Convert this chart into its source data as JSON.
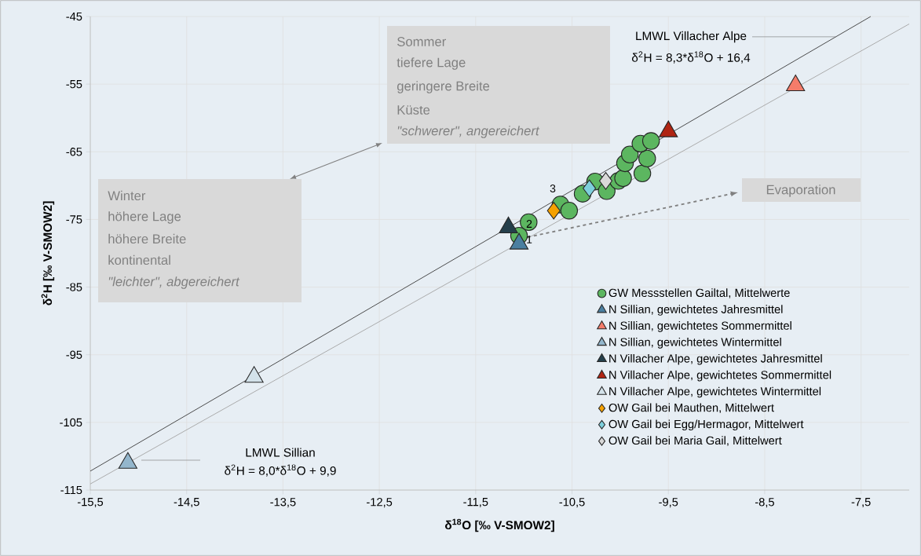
{
  "chart_data": {
    "type": "scatter",
    "xlabel": "δ$^{18}$O [‰ V-SMOW2]",
    "ylabel": "δ$^{2}$H [‰ V-SMOW2]",
    "xlim": [
      -15.5,
      -7.0
    ],
    "ylim": [
      -115,
      -45
    ],
    "xticks": [
      {
        "value": -15.5,
        "label": "-15,5"
      },
      {
        "value": -14.5,
        "label": "-14,5"
      },
      {
        "value": -13.5,
        "label": "-13,5"
      },
      {
        "value": -12.5,
        "label": "-12,5"
      },
      {
        "value": -11.5,
        "label": "-11,5"
      },
      {
        "value": -10.5,
        "label": "-10,5"
      },
      {
        "value": -9.5,
        "label": "-9,5"
      },
      {
        "value": -8.5,
        "label": "-8,5"
      },
      {
        "value": -7.5,
        "label": "-7,5"
      }
    ],
    "yticks": [
      -115,
      -105,
      -95,
      -85,
      -75,
      -65,
      -55,
      -45
    ],
    "grid": true,
    "legend": "bottom right",
    "series": [
      {
        "type": "line",
        "color": "#404040",
        "x": [
          -15.5,
          -7.4
        ],
        "values": [
          -112.2,
          -45.0
        ]
      },
      {
        "type": "line",
        "color": "#a6a6a6",
        "x": [
          -15.5,
          -7.0
        ],
        "values": [
          -114.1,
          -46.1
        ]
      },
      {
        "name": "GW Messstellen Gailtal, Mittelwerte",
        "color": "#5cb660",
        "marker": "circle",
        "x": [
          -10.95,
          -11.05,
          -10.62,
          -10.53,
          -10.39,
          -10.26,
          -10.14,
          -10.02,
          -9.97,
          -9.95,
          -9.9,
          -9.77,
          -9.72,
          -9.79,
          -9.68
        ],
        "values": [
          -75.4,
          -77.4,
          -72.8,
          -73.7,
          -71.2,
          -69.4,
          -70.8,
          -69.3,
          -68.9,
          -66.7,
          -65.4,
          -68.2,
          -66.0,
          -63.8,
          -63.4
        ]
      },
      {
        "name": "N Sillian, gewichtetes Jahresmittel",
        "color": "#4a7fa0",
        "marker": "triangle",
        "x": [
          -11.05
        ],
        "values": [
          -78.6
        ]
      },
      {
        "name": "N Sillian, gewichtetes Sommermittel",
        "color": "#f47c6a",
        "marker": "triangle",
        "x": [
          -8.18
        ],
        "values": [
          -55.2
        ]
      },
      {
        "name": "N Sillian, gewichtetes Wintermittel",
        "color": "#93b6cc",
        "marker": "triangle",
        "x": [
          -15.11
        ],
        "values": [
          -111.0
        ]
      },
      {
        "name": "N Villacher Alpe, gewichtetes Jahresmittel",
        "color": "#243f4b",
        "marker": "triangle",
        "x": [
          -11.16
        ],
        "values": [
          -76.2
        ]
      },
      {
        "name": "N Villacher Alpe, gewichtetes Sommermittel",
        "color": "#b02412",
        "marker": "triangle",
        "x": [
          -9.5
        ],
        "values": [
          -62.0
        ]
      },
      {
        "name": "N Villacher Alpe, gewichtetes Wintermittel",
        "color": "#d3e2ea",
        "marker": "triangle",
        "x": [
          -13.8
        ],
        "values": [
          -98.3
        ]
      },
      {
        "name": "OW Gail bei Mauthen, Mittelwert",
        "color": "#f5a100",
        "marker": "diamond",
        "x": [
          -10.69
        ],
        "values": [
          -73.7
        ]
      },
      {
        "name": "OW Gail bei Egg/Hermagor, Mittelwert",
        "color": "#7ecfdc",
        "marker": "diamond",
        "x": [
          -10.32
        ],
        "values": [
          -70.4
        ]
      },
      {
        "name": "OW Gail bei Maria Gail, Mittelwert",
        "color": "#d9d9d9",
        "marker": "diamond",
        "x": [
          -10.15
        ],
        "values": [
          -69.3
        ]
      }
    ],
    "annotations": [
      {
        "text": "LMWL Villacher Alpe",
        "x": -7.76,
        "y": -48.0
      },
      "δ$^{2}$H = 8,3*δ$^{18}$O  + 16,4",
      "LMWL Sillian",
      "δ$^{2}$H = 8,0*δ$^{18}$O + 9,9",
      "Sommer",
      "tiefere Lage",
      "geringere Breite",
      "Küste",
      "\"schwerer\", angereichert",
      "Winter",
      "höhere Lage",
      "höhere Breite",
      "kontinental",
      "\"leichter\", abgereichert",
      "Evaporation",
      "1",
      "2",
      "3"
    ]
  }
}
